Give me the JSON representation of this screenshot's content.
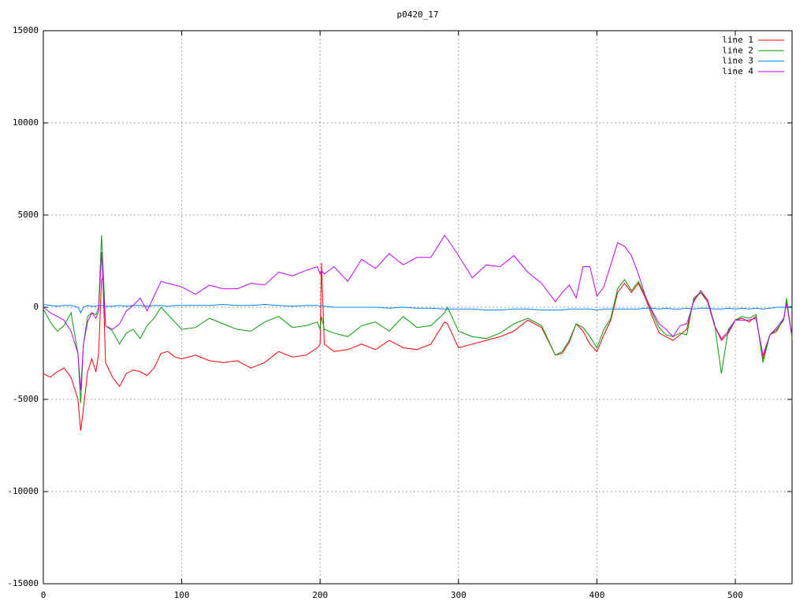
{
  "chart_data": {
    "type": "line",
    "title": "p0420_17",
    "x": [
      0,
      5,
      10,
      15,
      20,
      25,
      27,
      29,
      32,
      35,
      38,
      40,
      42,
      43,
      45,
      50,
      55,
      60,
      65,
      70,
      75,
      80,
      85,
      90,
      95,
      100,
      110,
      120,
      130,
      140,
      150,
      160,
      170,
      180,
      190,
      198,
      200,
      201,
      203,
      210,
      220,
      230,
      240,
      250,
      260,
      270,
      280,
      290,
      292,
      300,
      310,
      320,
      330,
      340,
      350,
      360,
      370,
      375,
      380,
      385,
      390,
      395,
      400,
      405,
      410,
      415,
      420,
      425,
      430,
      435,
      440,
      445,
      450,
      455,
      460,
      465,
      470,
      475,
      480,
      485,
      490,
      495,
      500,
      505,
      510,
      515,
      520,
      525,
      530,
      535,
      537,
      541
    ],
    "series": [
      {
        "name": "line 1",
        "color": "#ff0000",
        "values": [
          -3600,
          -3800,
          -3500,
          -3300,
          -3800,
          -5000,
          -6700,
          -5500,
          -3500,
          -2800,
          -3500,
          -2500,
          1500,
          1600,
          -3000,
          -3800,
          -4300,
          -3600,
          -3400,
          -3500,
          -3700,
          -3300,
          -2500,
          -2400,
          -2700,
          -2800,
          -2600,
          -2900,
          -3000,
          -2900,
          -3300,
          -3000,
          -2400,
          -2700,
          -2600,
          -2200,
          -2000,
          2400,
          -2000,
          -2400,
          -2300,
          -2000,
          -2300,
          -1800,
          -2200,
          -2300,
          -2000,
          -800,
          -900,
          -2200,
          -2000,
          -1800,
          -1600,
          -1300,
          -700,
          -1100,
          -2600,
          -2500,
          -1900,
          -900,
          -1300,
          -2000,
          -2400,
          -1500,
          -700,
          800,
          1300,
          800,
          1300,
          500,
          -500,
          -1400,
          -1600,
          -1800,
          -1500,
          -1200,
          400,
          800,
          300,
          -1000,
          -1800,
          -1400,
          -700,
          -600,
          -800,
          -500,
          -2800,
          -1500,
          -1300,
          -600,
          300,
          -1600
        ]
      },
      {
        "name": "line 2",
        "color": "#00a000",
        "values": [
          -100,
          -800,
          -1300,
          -1000,
          -300,
          -2500,
          -5200,
          -2000,
          -500,
          -300,
          -400,
          0,
          3900,
          2500,
          -1000,
          -1300,
          -2000,
          -1400,
          -1200,
          -1700,
          -1000,
          -600,
          0,
          -400,
          -800,
          -1200,
          -1100,
          -600,
          -900,
          -1200,
          -1300,
          -800,
          -500,
          -1100,
          -1000,
          -800,
          -1200,
          -500,
          -1200,
          -1400,
          -1600,
          -1000,
          -800,
          -1300,
          -500,
          -1100,
          -1000,
          -300,
          0,
          -1300,
          -1600,
          -1700,
          -1400,
          -900,
          -600,
          -1000,
          -2600,
          -2400,
          -1800,
          -900,
          -1100,
          -1600,
          -2200,
          -1200,
          -600,
          1000,
          1500,
          900,
          1400,
          600,
          -300,
          -1100,
          -1500,
          -1600,
          -1400,
          -1500,
          500,
          800,
          400,
          -900,
          -3600,
          -1200,
          -700,
          -500,
          -600,
          -400,
          -3000,
          -1500,
          -1200,
          -700,
          500,
          -1700
        ]
      },
      {
        "name": "line 3",
        "color": "#0080ff",
        "values": [
          150,
          100,
          50,
          100,
          100,
          0,
          -300,
          0,
          100,
          50,
          50,
          100,
          100,
          100,
          50,
          50,
          100,
          50,
          100,
          100,
          50,
          100,
          100,
          50,
          100,
          100,
          100,
          100,
          150,
          100,
          100,
          150,
          100,
          50,
          100,
          100,
          50,
          100,
          50,
          0,
          0,
          0,
          0,
          -50,
          0,
          -50,
          -50,
          -100,
          -100,
          -100,
          -100,
          -150,
          -150,
          -100,
          -100,
          -150,
          -150,
          -150,
          -100,
          -100,
          -100,
          -100,
          -150,
          -100,
          -100,
          -100,
          -100,
          -100,
          -100,
          -50,
          -50,
          -100,
          -50,
          -100,
          -100,
          -50,
          -100,
          -50,
          -50,
          -100,
          -100,
          -50,
          -100,
          -50,
          -100,
          -50,
          -100,
          -50,
          0,
          0,
          0,
          50
        ]
      },
      {
        "name": "line 4",
        "color": "#c000ff",
        "values": [
          0,
          -300,
          -500,
          -700,
          -1300,
          -2500,
          -4500,
          -2000,
          -800,
          -300,
          -600,
          -200,
          3000,
          1500,
          -1000,
          -1200,
          -900,
          -200,
          100,
          500,
          -200,
          600,
          1400,
          1300,
          1200,
          1100,
          700,
          1200,
          1000,
          1000,
          1300,
          1200,
          1900,
          1700,
          2000,
          2200,
          1800,
          2000,
          1800,
          2200,
          1400,
          2600,
          2100,
          2900,
          2300,
          2700,
          2700,
          3900,
          3700,
          2800,
          1600,
          2300,
          2200,
          2800,
          1900,
          1300,
          300,
          800,
          1200,
          500,
          2200,
          2200,
          600,
          1100,
          2300,
          3500,
          3300,
          2800,
          1800,
          600,
          -200,
          -900,
          -1200,
          -1600,
          -1000,
          -900,
          300,
          900,
          400,
          -1000,
          -1700,
          -1300,
          -700,
          -700,
          -700,
          -600,
          -2600,
          -1500,
          -1100,
          -600,
          200,
          -1500
        ]
      }
    ],
    "xlim": [
      0,
      541
    ],
    "ylim": [
      -15000,
      15000
    ],
    "xticks": [
      0,
      100,
      200,
      300,
      400,
      500
    ],
    "yticks": [
      -15000,
      -10000,
      -5000,
      0,
      5000,
      10000,
      15000
    ],
    "grid": true,
    "legend": "top-right"
  }
}
